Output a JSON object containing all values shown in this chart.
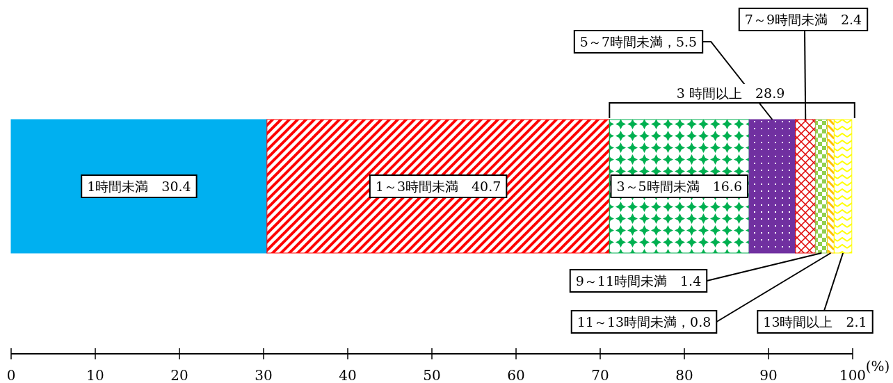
{
  "chart_data": {
    "type": "bar",
    "orientation": "horizontal",
    "stacked": true,
    "categories": [
      null
    ],
    "xlim": [
      0,
      100
    ],
    "xticks": [
      0,
      10,
      20,
      30,
      40,
      50,
      60,
      70,
      80,
      90,
      100
    ],
    "xlabel": "(%)",
    "tick_labels": "x",
    "grid": false,
    "annotations": [
      "3 時間以上　28.9"
    ],
    "series": [
      {
        "color": "#00b0f0",
        "values": [
          30.4
        ],
        "value_labels": [
          "1時間未満　30.4"
        ]
      },
      {
        "color": "#ff0000",
        "values": [
          40.7
        ],
        "value_labels": [
          "1～3時間未満　40.7"
        ]
      },
      {
        "color": "#00b050",
        "values": [
          16.6
        ],
        "value_labels": [
          "3～5時間未満　16.6"
        ]
      },
      {
        "color": "#7030a0",
        "values": [
          5.5
        ],
        "value_labels": [
          "5～7時間未満，5.5"
        ]
      },
      {
        "color": "#e00000",
        "values": [
          2.4
        ],
        "value_labels": [
          "7～9時間未満　2.4"
        ]
      },
      {
        "color": "#92d050",
        "values": [
          1.4
        ],
        "value_labels": [
          "9～11時間未満　1.4"
        ]
      },
      {
        "color": "#ffc000",
        "values": [
          0.8
        ],
        "value_labels": [
          "11～13時間未満，0.8"
        ]
      },
      {
        "color": "#ffff00",
        "values": [
          2.1
        ],
        "value_labels": [
          "13時間以上　2.1"
        ]
      }
    ]
  }
}
